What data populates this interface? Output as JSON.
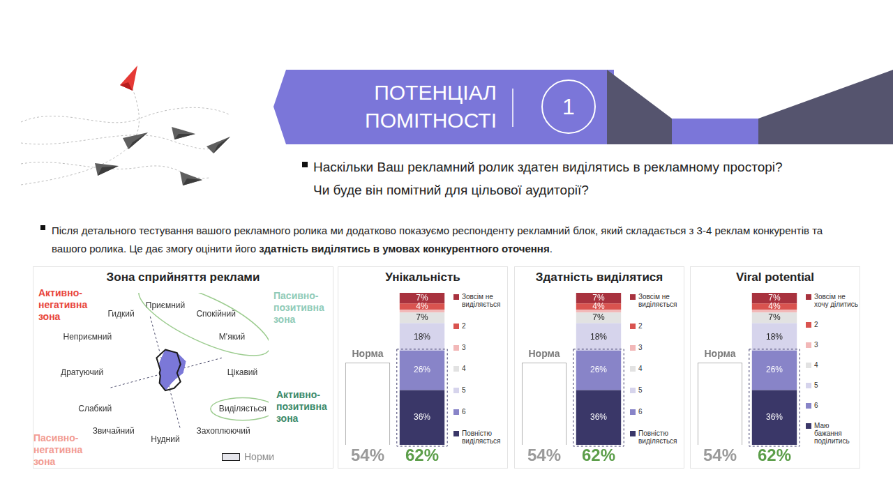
{
  "header": {
    "title": "ПОТЕНЦІАЛ ПОМІТНОСТІ",
    "number": "1"
  },
  "question": [
    "Наскільки Ваш рекламний ролик здатен виділятись в рекламному просторі?",
    "Чи буде він помітний для цільової аудиторії?"
  ],
  "intro": [
    "Після детального тестування вашого рекламного ролика ми додатково показуємо респонденту рекламний блок, який складається з 3-4 реклам конкурентів та вашого ролика. Це дає змогу оцінити його ",
    "здатність виділятись в умовах конкурентного оточення",
    "."
  ],
  "chart_data": [
    {
      "type": "radar",
      "title": "Зона сприйняття реклами",
      "categories": [
        "Приємний",
        "Спокійний",
        "М'який",
        "Цікавий",
        "Виділяється",
        "Захоплюючий",
        "Нудний",
        "Звичайний",
        "Слабкий",
        "Дратуючий",
        "Неприємний",
        "Гидкий"
      ],
      "series": [
        {
          "color": "#7b78d8",
          "values": [
            4,
            4,
            4,
            3,
            2,
            2,
            3,
            2,
            1,
            1,
            1,
            2
          ]
        },
        {
          "name": "Норми",
          "color": "#1a1a1a",
          "values": [
            4,
            4,
            3,
            2,
            3,
            3,
            3,
            2,
            1,
            1,
            1,
            3
          ]
        }
      ],
      "ylim": [
        0,
        10
      ],
      "grid": false,
      "tick_labels": "x",
      "legend": "lower right",
      "annotations": [
        "Активно-негативна зона",
        "Пасивно-позитивна зона",
        "Активно-позитивна зона",
        "Пасивно-негативна зона"
      ]
    },
    {
      "type": "bar",
      "title": "Унікальність",
      "stacked": true,
      "data_labels": true,
      "legend": "right",
      "tick_labels": false,
      "categories": [
        "Норма",
        null
      ],
      "ylim": [
        0,
        100
      ],
      "totals": [
        54,
        62
      ],
      "total_labels": [
        "54%",
        "62%"
      ],
      "series": [
        {
          "name": "Зовсім не виділяється",
          "color": "#a8323e",
          "values": [
            null,
            7
          ],
          "value_labels": [
            null,
            "7%"
          ]
        },
        {
          "name": "2",
          "color": "#d9534f",
          "values": [
            null,
            4
          ],
          "value_labels": [
            null,
            "4%"
          ]
        },
        {
          "name": "3",
          "color": "#f2b8b8",
          "values": [
            null,
            2
          ],
          "value_labels": [
            null,
            null
          ]
        },
        {
          "name": "4",
          "color": "#e2e2e2",
          "values": [
            null,
            7
          ],
          "value_labels": [
            null,
            "7%"
          ]
        },
        {
          "name": "5",
          "color": "#d6d4ec",
          "values": [
            null,
            18
          ],
          "value_labels": [
            null,
            "18%"
          ]
        },
        {
          "name": "6",
          "color": "#8884c8",
          "values": [
            null,
            26
          ],
          "value_labels": [
            null,
            "26%"
          ]
        },
        {
          "name": "Повністю виділяється",
          "color": "#3a3768",
          "values": [
            null,
            36
          ],
          "value_labels": [
            null,
            "36%"
          ]
        }
      ]
    },
    {
      "type": "bar",
      "title": "Здатність виділятися",
      "stacked": true,
      "data_labels": true,
      "legend": "right",
      "tick_labels": false,
      "categories": [
        "Норма",
        null
      ],
      "ylim": [
        0,
        100
      ],
      "totals": [
        54,
        62
      ],
      "total_labels": [
        "54%",
        "62%"
      ],
      "series": [
        {
          "name": "Зовсім не виділяється",
          "color": "#a8323e",
          "values": [
            null,
            7
          ],
          "value_labels": [
            null,
            "7%"
          ]
        },
        {
          "name": "2",
          "color": "#d9534f",
          "values": [
            null,
            4
          ],
          "value_labels": [
            null,
            "4%"
          ]
        },
        {
          "name": "3",
          "color": "#f2b8b8",
          "values": [
            null,
            2
          ],
          "value_labels": [
            null,
            null
          ]
        },
        {
          "name": "4",
          "color": "#e2e2e2",
          "values": [
            null,
            7
          ],
          "value_labels": [
            null,
            "7%"
          ]
        },
        {
          "name": "5",
          "color": "#d6d4ec",
          "values": [
            null,
            18
          ],
          "value_labels": [
            null,
            "18%"
          ]
        },
        {
          "name": "6",
          "color": "#8884c8",
          "values": [
            null,
            26
          ],
          "value_labels": [
            null,
            "26%"
          ]
        },
        {
          "name": "Повністю виділяється",
          "color": "#3a3768",
          "values": [
            null,
            36
          ],
          "value_labels": [
            null,
            "36%"
          ]
        }
      ]
    },
    {
      "type": "bar",
      "title": "Viral potential",
      "stacked": true,
      "data_labels": true,
      "legend": "right",
      "tick_labels": false,
      "categories": [
        "Норма",
        null
      ],
      "ylim": [
        0,
        100
      ],
      "totals": [
        54,
        62
      ],
      "total_labels": [
        "54%",
        "62%"
      ],
      "series": [
        {
          "name": "Зовсім не хочу ділитись",
          "color": "#a8323e",
          "values": [
            null,
            7
          ],
          "value_labels": [
            null,
            "7%"
          ]
        },
        {
          "name": "2",
          "color": "#d9534f",
          "values": [
            null,
            4
          ],
          "value_labels": [
            null,
            "4%"
          ]
        },
        {
          "name": "3",
          "color": "#f2b8b8",
          "values": [
            null,
            2
          ],
          "value_labels": [
            null,
            null
          ]
        },
        {
          "name": "4",
          "color": "#e2e2e2",
          "values": [
            null,
            7
          ],
          "value_labels": [
            null,
            "7%"
          ]
        },
        {
          "name": "5",
          "color": "#d6d4ec",
          "values": [
            null,
            18
          ],
          "value_labels": [
            null,
            "18%"
          ]
        },
        {
          "name": "6",
          "color": "#8884c8",
          "values": [
            null,
            26
          ],
          "value_labels": [
            null,
            "26%"
          ]
        },
        {
          "name": "Маю бажання поділитись",
          "color": "#3a3768",
          "values": [
            null,
            36
          ],
          "value_labels": [
            null,
            "36%"
          ]
        }
      ]
    }
  ]
}
